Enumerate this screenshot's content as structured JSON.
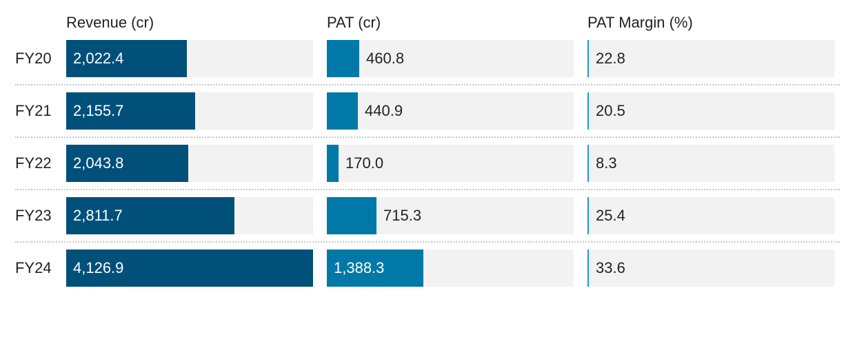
{
  "chart_data": {
    "type": "table",
    "categories": [
      "FY20",
      "FY21",
      "FY22",
      "FY23",
      "FY24"
    ],
    "series": [
      {
        "name": "Revenue (cr)",
        "values": [
          2022.4,
          2155.7,
          2043.8,
          2811.7,
          4126.9
        ],
        "labels": [
          "2,022.4",
          "2,155.7",
          "2,043.8",
          "2,811.7",
          "4,126.9"
        ],
        "color": "#00507a",
        "max": 4126.9
      },
      {
        "name": "PAT (cr)",
        "values": [
          460.8,
          440.9,
          170.0,
          715.3,
          1388.3
        ],
        "labels": [
          "460.8",
          "440.9",
          "170.0",
          "715.3",
          "1,388.3"
        ],
        "color": "#0079a8",
        "max": 3540
      },
      {
        "name": "PAT Margin (%)",
        "values": [
          22.8,
          20.5,
          8.3,
          25.4,
          33.6
        ],
        "labels": [
          "22.8",
          "20.5",
          "8.3",
          "25.4",
          "33.6"
        ],
        "color": "#1b9ccc",
        "max": 7000
      }
    ],
    "track_color": "#f2f2f2",
    "grid": false,
    "legend": "none"
  }
}
